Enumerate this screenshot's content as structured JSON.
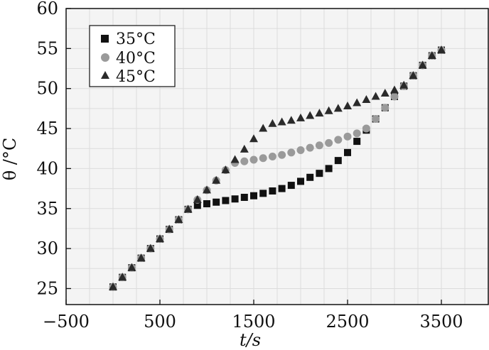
{
  "chart_data": {
    "type": "scatter",
    "xlabel": "t/s",
    "ylabel": "θ /°C",
    "xlim": [
      -500,
      4000
    ],
    "ylim": [
      23,
      60
    ],
    "x_ticks": [
      -500,
      500,
      1500,
      2500,
      3500
    ],
    "x_tick_labels": [
      "−500",
      "500",
      "1500",
      "2500",
      "3500"
    ],
    "y_ticks": [
      25,
      30,
      35,
      40,
      45,
      50,
      55,
      60
    ],
    "y_tick_labels": [
      "25",
      "30",
      "35",
      "40",
      "45",
      "50",
      "55",
      "60"
    ],
    "grid": true,
    "legend_position": "top-left",
    "colors": {
      "35C": "#111111",
      "40C": "#9a9a9a",
      "45C": "#2a2a2a"
    },
    "series": [
      {
        "name": "35°C",
        "marker": "square",
        "x": [
          0,
          100,
          200,
          300,
          400,
          500,
          600,
          700,
          800,
          900,
          1000,
          1100,
          1200,
          1300,
          1400,
          1500,
          1600,
          1700,
          1800,
          1900,
          2000,
          2100,
          2200,
          2300,
          2400,
          2500,
          2600,
          2700,
          2800,
          2900,
          3000,
          3100,
          3200,
          3300,
          3400,
          3500
        ],
        "y": [
          25.2,
          26.4,
          27.6,
          28.8,
          30.0,
          31.2,
          32.4,
          33.6,
          34.9,
          35.4,
          35.6,
          35.8,
          36.0,
          36.2,
          36.4,
          36.6,
          36.9,
          37.2,
          37.5,
          37.9,
          38.4,
          38.9,
          39.4,
          40.0,
          41.0,
          42.0,
          43.4,
          44.8,
          46.2,
          47.6,
          49.0,
          50.3,
          51.6,
          52.9,
          54.1,
          54.8
        ]
      },
      {
        "name": "40°C",
        "marker": "circle",
        "x": [
          0,
          100,
          200,
          300,
          400,
          500,
          600,
          700,
          800,
          900,
          1000,
          1100,
          1200,
          1300,
          1400,
          1500,
          1600,
          1700,
          1800,
          1900,
          2000,
          2100,
          2200,
          2300,
          2400,
          2500,
          2600,
          2700,
          2800,
          2900,
          3000,
          3100,
          3200,
          3300,
          3400,
          3500
        ],
        "y": [
          25.2,
          26.4,
          27.6,
          28.8,
          30.0,
          31.2,
          32.4,
          33.6,
          34.9,
          36.1,
          37.3,
          38.5,
          39.8,
          40.7,
          40.9,
          41.1,
          41.3,
          41.5,
          41.7,
          42.0,
          42.3,
          42.6,
          42.9,
          43.2,
          43.6,
          44.0,
          44.4,
          45.0,
          46.2,
          47.6,
          49.0,
          50.3,
          51.6,
          52.9,
          54.1,
          54.8
        ]
      },
      {
        "name": "45°C",
        "marker": "triangle",
        "x": [
          0,
          100,
          200,
          300,
          400,
          500,
          600,
          700,
          800,
          900,
          1000,
          1100,
          1200,
          1300,
          1400,
          1500,
          1600,
          1700,
          1800,
          1900,
          2000,
          2100,
          2200,
          2300,
          2400,
          2500,
          2600,
          2700,
          2800,
          2900,
          3000,
          3100,
          3200,
          3300,
          3400,
          3500
        ],
        "y": [
          25.2,
          26.4,
          27.6,
          28.8,
          30.0,
          31.2,
          32.4,
          33.6,
          34.9,
          36.1,
          37.3,
          38.5,
          39.8,
          41.1,
          42.4,
          43.7,
          45.0,
          45.6,
          45.8,
          46.0,
          46.3,
          46.6,
          46.9,
          47.2,
          47.5,
          47.8,
          48.2,
          48.6,
          49.0,
          49.4,
          49.8,
          50.4,
          51.6,
          52.9,
          54.1,
          54.8
        ]
      }
    ]
  }
}
